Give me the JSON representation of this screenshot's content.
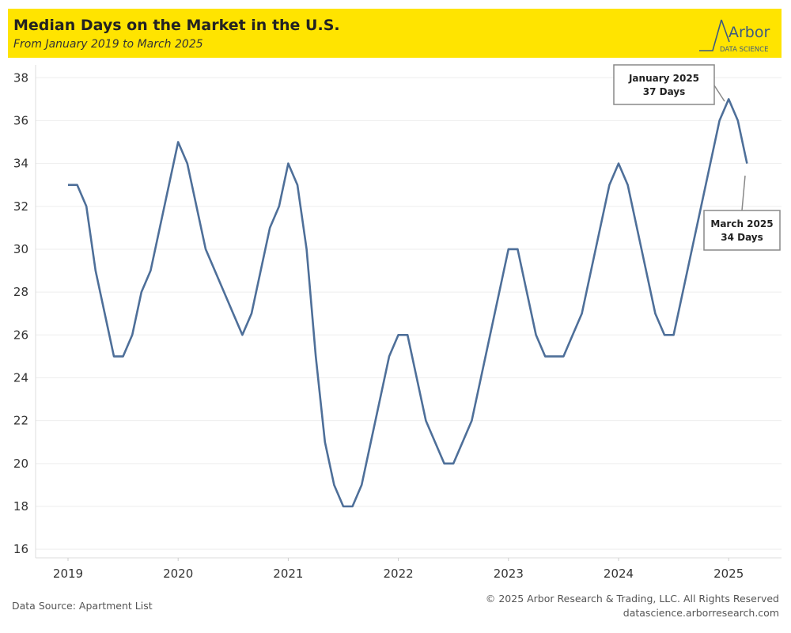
{
  "header": {
    "title": "Median Days on the Market in the U.S.",
    "subtitle": "From January 2019 to March 2025",
    "logo_text": "Arbor",
    "logo_sub": "DATA SCIENCE"
  },
  "colors": {
    "header_bg": "#ffe400",
    "line": "#4e6f99",
    "logo": "#3d5a80"
  },
  "footer": {
    "source": "Data Source: Apartment List",
    "copyright": "© 2025 Arbor Research & Trading, LLC. All Rights Reserved",
    "website": "datascience.arborresearch.com"
  },
  "chart_data": {
    "type": "line",
    "title": "Median Days on the Market in the U.S.",
    "subtitle": "From January 2019 to March 2025",
    "x_start": "2019-01",
    "x_tick_labels": [
      "2019",
      "2020",
      "2021",
      "2022",
      "2023",
      "2024",
      "2025"
    ],
    "y_tick_labels": [
      "16",
      "18",
      "20",
      "22",
      "24",
      "26",
      "28",
      "30",
      "32",
      "34",
      "36",
      "38"
    ],
    "ylim": [
      15.6,
      38.6
    ],
    "grid": true,
    "series": [
      {
        "values": [
          33,
          33,
          32,
          29,
          27,
          25,
          25,
          26,
          28,
          29,
          31,
          33,
          35,
          34,
          32,
          30,
          29,
          28,
          27,
          26,
          27,
          29,
          31,
          32,
          34,
          33,
          30,
          25,
          21,
          19,
          18,
          18,
          19,
          21,
          23,
          25,
          26,
          26,
          24,
          22,
          21,
          20,
          20,
          21,
          22,
          24,
          26,
          28,
          30,
          30,
          28,
          26,
          25,
          25,
          25,
          26,
          27,
          29,
          31,
          33,
          34,
          33,
          31,
          29,
          27,
          26,
          26,
          28,
          30,
          32,
          34,
          36,
          37,
          36,
          34
        ]
      }
    ],
    "annotations": [
      {
        "line1": "January 2025",
        "line2": "37 Days"
      },
      {
        "line1": "March 2025",
        "line2": "34 Days"
      }
    ]
  }
}
